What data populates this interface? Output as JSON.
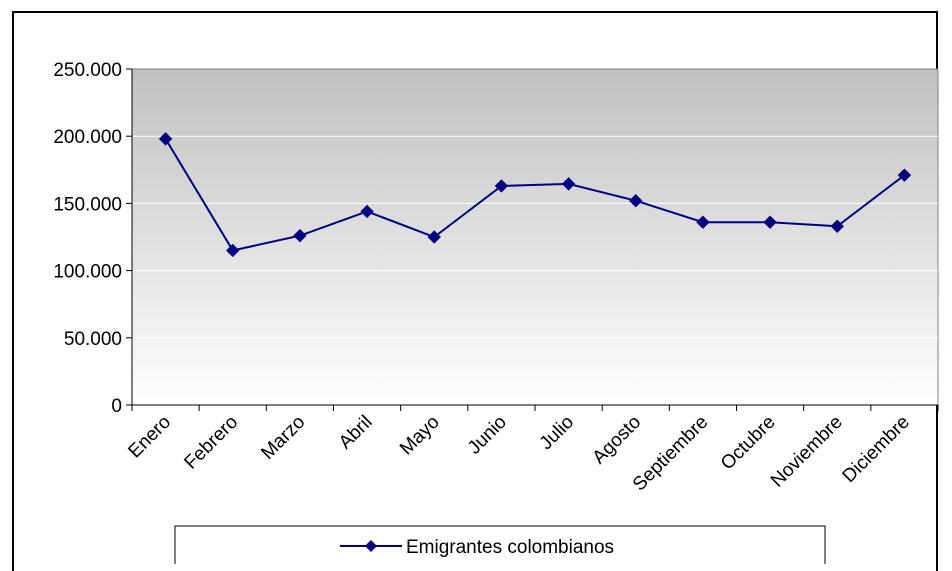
{
  "chart_data": {
    "type": "line",
    "categories": [
      "Enero",
      "Febrero",
      "Marzo",
      "Abril",
      "Mayo",
      "Junio",
      "Julio",
      "Agosto",
      "Septiembre",
      "Octubre",
      "Noviembre",
      "Diciembre"
    ],
    "series": [
      {
        "name": "Emigrantes colombianos",
        "values": [
          198000,
          115000,
          126000,
          144000,
          125000,
          163000,
          164500,
          152000,
          136000,
          136000,
          133000,
          171000
        ],
        "color": "#000080"
      }
    ],
    "y_ticks": [
      "0",
      "50.000",
      "100.000",
      "150.000",
      "200.000",
      "250.000"
    ],
    "ylim": [
      0,
      250000
    ],
    "grid": true,
    "legend_position": "bottom",
    "plot_background": "gradient gray to white"
  }
}
